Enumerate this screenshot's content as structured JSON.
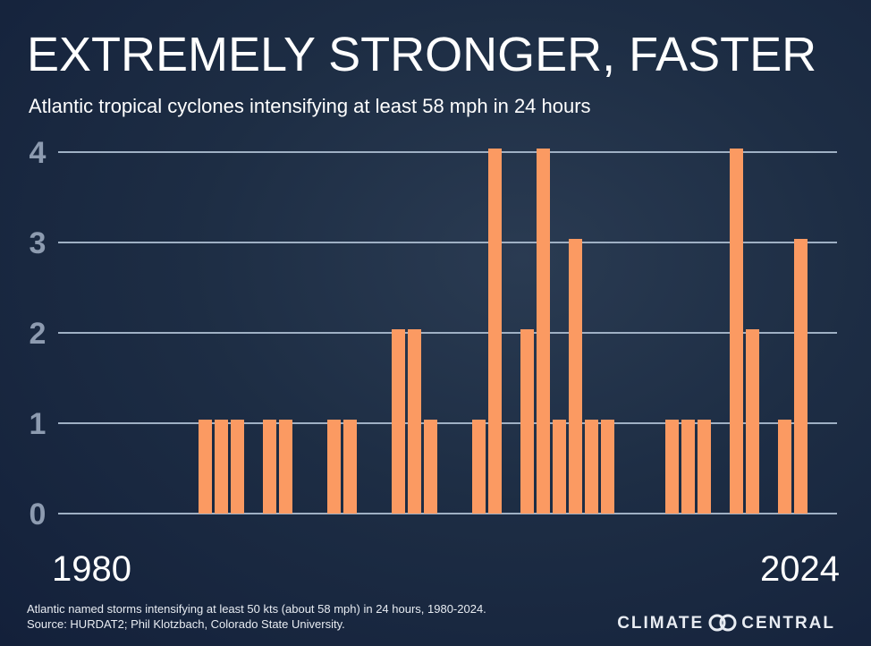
{
  "header": {
    "title": "EXTREMELY STRONGER, FASTER",
    "subtitle": "Atlantic tropical cyclones intensifying at least 58 mph in 24 hours"
  },
  "chart_data": {
    "type": "bar",
    "x_start_label": "1980",
    "x_end_label": "2024",
    "categories": [
      1980,
      1981,
      1982,
      1983,
      1984,
      1985,
      1986,
      1987,
      1988,
      1989,
      1990,
      1991,
      1992,
      1993,
      1994,
      1995,
      1996,
      1997,
      1998,
      1999,
      2000,
      2001,
      2002,
      2003,
      2004,
      2005,
      2006,
      2007,
      2008,
      2009,
      2010,
      2011,
      2012,
      2013,
      2014,
      2015,
      2016,
      2017,
      2018,
      2019,
      2020,
      2021,
      2022,
      2023,
      2024
    ],
    "values": [
      0,
      0,
      0,
      0,
      0,
      0,
      0,
      1,
      1,
      1,
      0,
      1,
      1,
      0,
      0,
      1,
      1,
      0,
      0,
      2,
      2,
      1,
      0,
      0,
      1,
      4,
      0,
      2,
      4,
      1,
      3,
      1,
      1,
      0,
      0,
      0,
      1,
      1,
      1,
      0,
      4,
      2,
      0,
      1,
      3
    ],
    "yticks": [
      "0",
      "1",
      "2",
      "3",
      "4"
    ],
    "ylim": [
      0,
      4
    ],
    "grid": true,
    "bar_color": "#fb9a62",
    "grid_color": "#9fb0c4"
  },
  "footer": {
    "note": "Atlantic named storms intensifying at least 50 kts (about 58 mph) in 24 hours, 1980-2024.",
    "source": "Source: HURDAT2; Phil Klotzbach, Colorado State University.",
    "brand_left": "CLIMATE",
    "brand_right": "CENTRAL"
  }
}
